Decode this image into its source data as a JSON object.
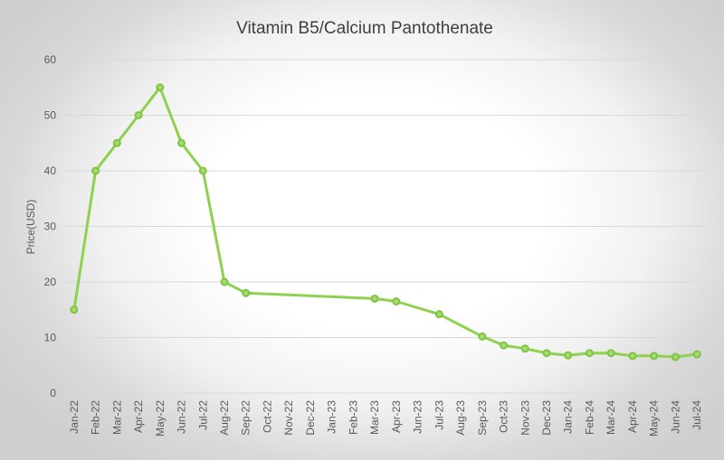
{
  "chart_data": {
    "type": "line",
    "title": "Vitamin B5/Calcium Pantothenate",
    "xlabel": "",
    "ylabel": "Price(USD)",
    "ylim": [
      0,
      60
    ],
    "yticks": [
      0,
      10,
      20,
      30,
      40,
      50,
      60
    ],
    "grid": true,
    "legend": "none",
    "colors": {
      "series": "#8fd14f",
      "marker_fill": "#a5dc6e",
      "grid": "#d9d9d9"
    },
    "categories": [
      "Jan-22",
      "Feb-22",
      "Mar-22",
      "Apr-22",
      "May-22",
      "Jun-22",
      "Jul-22",
      "Aug-22",
      "Sep-22",
      "Oct-22",
      "Nov-22",
      "Dec-22",
      "Jan-23",
      "Feb-23",
      "Mar-23",
      "Apr-23",
      "Jun-23",
      "Jul-23",
      "Aug-23",
      "Sep-23",
      "Oct-23",
      "Nov-23",
      "Dec-23",
      "Jan-24",
      "Feb-24",
      "Mar-24",
      "Apr-24",
      "May-24",
      "Jun-24",
      "Jul-24"
    ],
    "series": [
      {
        "values": [
          15,
          40,
          45,
          50,
          55,
          45,
          40,
          20,
          18,
          null,
          null,
          null,
          null,
          null,
          17,
          16.5,
          null,
          14.2,
          null,
          10.2,
          8.6,
          8,
          7.2,
          6.8,
          7.2,
          7.2,
          6.7,
          6.7,
          6.5,
          7
        ]
      }
    ]
  }
}
